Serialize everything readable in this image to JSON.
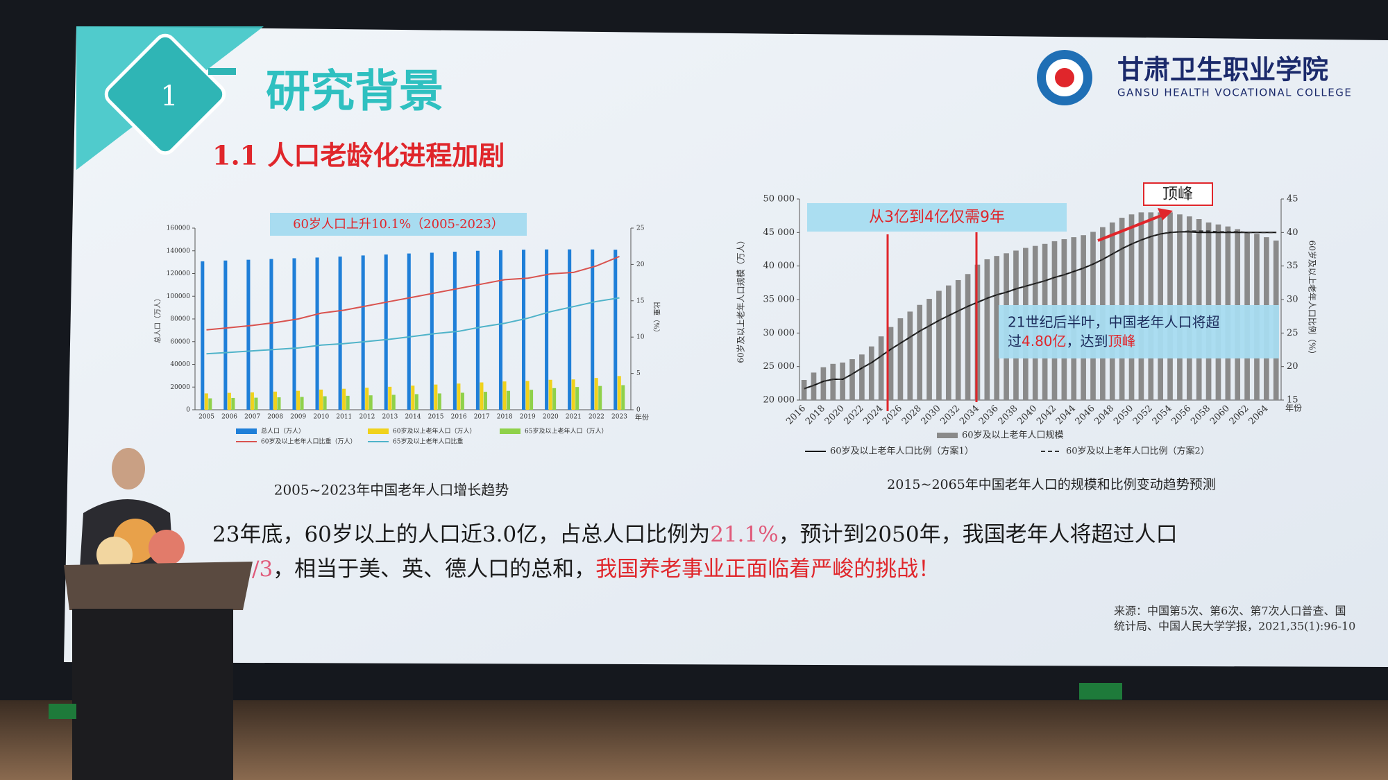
{
  "slide": {
    "section_number": "1",
    "section_title": "研究背景",
    "subtitle": "1.1 人口老龄化进程加剧",
    "college_name": "甘肃卫生职业学院",
    "college_name_en": "GANSU HEALTH VOCATIONAL COLLEGE",
    "body": [
      [
        "23年底，60岁以上的人口近3.0亿，占总人口比例为",
        "21.1%",
        "，预计到2050年，我国老年人将超过人口"
      ],
      [
        "/3",
        "，相当于美、英、德人口的总和，",
        "我国养老事业正面临着严峻的挑战！"
      ]
    ],
    "source": [
      "来源：中国第5次、第6次、第7次人口普查、国",
      "统计局、中国人民大学学报，2021,35(1):96-10"
    ]
  },
  "chart_data": [
    {
      "type": "bar",
      "title": "60岁人口上升10.1%（2005-2023）",
      "caption": "2005~2023年中国老年人口增长趋势",
      "y_label": "总人口（万人）",
      "y2_label": "比重（%）",
      "x_label": "年份",
      "categories": [
        "2005",
        "2006",
        "2007",
        "2008",
        "2009",
        "2010",
        "2011",
        "2012",
        "2013",
        "2014",
        "2015",
        "2016",
        "2017",
        "2018",
        "2019",
        "2020",
        "2021",
        "2022",
        "2023"
      ],
      "series": [
        {
          "name": "总人口（万人）",
          "color": "#1f7fd8",
          "values": [
            130756,
            131448,
            132129,
            132802,
            133450,
            134091,
            134916,
            135922,
            136726,
            137646,
            138326,
            139232,
            140011,
            140541,
            141008,
            141212,
            141260,
            141175,
            140967
          ]
        },
        {
          "name": "60岁及以上老年人口（万人）",
          "color": "#f0d21c",
          "values": [
            14400,
            14900,
            15300,
            15989,
            16714,
            17765,
            18499,
            19390,
            20243,
            21242,
            22200,
            23086,
            24090,
            24949,
            25388,
            26402,
            26736,
            28004,
            29697
          ]
        },
        {
          "name": "65岁及以上老年人口（万人）",
          "color": "#8fd14a",
          "values": [
            10055,
            10419,
            10636,
            10956,
            11307,
            11894,
            12288,
            12714,
            13161,
            13755,
            14386,
            15003,
            15831,
            16658,
            17603,
            19064,
            20056,
            20978,
            21676
          ]
        },
        {
          "name": "60岁及以上老年人口比重（万人）",
          "color": "#d9534f",
          "type": "line",
          "axis": "y2",
          "values": [
            11.0,
            11.3,
            11.6,
            12.0,
            12.5,
            13.3,
            13.7,
            14.3,
            14.9,
            15.5,
            16.1,
            16.7,
            17.3,
            17.9,
            18.1,
            18.7,
            18.9,
            19.8,
            21.1
          ]
        },
        {
          "name": "65岁及以上老年人口比重",
          "color": "#4fb3c9",
          "type": "line",
          "axis": "y2",
          "values": [
            7.7,
            7.9,
            8.1,
            8.3,
            8.5,
            8.9,
            9.1,
            9.4,
            9.7,
            10.1,
            10.5,
            10.8,
            11.4,
            11.9,
            12.6,
            13.5,
            14.2,
            14.9,
            15.4
          ]
        }
      ],
      "ylim": [
        0,
        160000
      ],
      "yticks": [
        0,
        20000,
        40000,
        60000,
        80000,
        100000,
        120000,
        140000,
        160000
      ],
      "y2lim": [
        0,
        25
      ],
      "y2ticks": [
        0,
        5,
        10,
        15,
        20,
        25
      ]
    },
    {
      "type": "bar",
      "caption": "2015~2065年中国老年人口的规模和比例变动趋势预测",
      "annotations": [
        "从3亿到4亿仅需9年",
        "顶峰"
      ],
      "callout": {
        "line1": "21世纪后半叶，中国老年人口将超",
        "line2": [
          "过",
          "4.80亿",
          "，达到",
          "顶峰"
        ]
      },
      "y_label": "60岁及以上老年人口规模（万人）",
      "y2_label": "60岁及以上老年人口比例（%）",
      "x_label": "年份",
      "categories": [
        "2016",
        null,
        "2018",
        null,
        "2020",
        null,
        "2022",
        null,
        "2024",
        null,
        "2026",
        null,
        "2028",
        null,
        "2030",
        null,
        "2032",
        null,
        "2034",
        null,
        "2036",
        null,
        "2038",
        null,
        "2040",
        null,
        "2042",
        null,
        "2044",
        null,
        "2046",
        null,
        "2048",
        null,
        "2050",
        null,
        "2052",
        null,
        "2054",
        null,
        "2056",
        null,
        "2058",
        null,
        "2060",
        null,
        "2062",
        null,
        "2064",
        null
      ],
      "series": [
        {
          "name": "60岁及以上老年人口规模",
          "color": "#8a8a8a",
          "values": [
            23000,
            24100,
            24900,
            25400,
            25600,
            26100,
            26800,
            28000,
            29500,
            30900,
            32200,
            33200,
            34200,
            35100,
            36300,
            37100,
            37900,
            38800,
            40200,
            41000,
            41500,
            41900,
            42300,
            42700,
            43000,
            43300,
            43700,
            44000,
            44300,
            44600,
            45100,
            45800,
            46500,
            47200,
            47700,
            48000,
            48000,
            48000,
            48000,
            47700,
            47400,
            47000,
            46500,
            46200,
            45900,
            45500,
            45100,
            44800,
            44300,
            43800
          ]
        },
        {
          "name": "60岁及以上老年人口比例（方案1）",
          "color": "#111111",
          "type": "line",
          "axis": "y2",
          "values": [
            16.7,
            17.2,
            17.8,
            18.1,
            18.1,
            18.9,
            19.8,
            20.6,
            21.6,
            22.6,
            23.5,
            24.4,
            25.3,
            26.1,
            26.9,
            27.6,
            28.3,
            29.0,
            29.6,
            30.2,
            30.7,
            31.1,
            31.6,
            32.0,
            32.4,
            32.8,
            33.3,
            33.7,
            34.2,
            34.7,
            35.3,
            36.0,
            36.8,
            37.6,
            38.3,
            38.9,
            39.4,
            39.8,
            40.0,
            40.1,
            40.1,
            40.0,
            40.0,
            40.0,
            40.0,
            40.0,
            40.0,
            40.0,
            40.0,
            40.0
          ]
        },
        {
          "name": "60岁及以上老年人口比例（方案2）",
          "color": "#333333",
          "type": "line",
          "axis": "y2",
          "linestyle": "dashed",
          "values": [
            16.7,
            17.2,
            17.8,
            18.1,
            18.1,
            18.9,
            19.8,
            20.6,
            21.6,
            22.6,
            23.5,
            24.4,
            25.3,
            26.1,
            26.9,
            27.6,
            28.3,
            29.0,
            29.6,
            30.2,
            30.7,
            31.1,
            31.6,
            32.0,
            32.4,
            32.8,
            33.3,
            33.7,
            34.2,
            34.7,
            35.3,
            36.0,
            36.8,
            37.6,
            38.3,
            38.9,
            39.4,
            39.8,
            40.0,
            40.1,
            40.2,
            40.2,
            40.2,
            40.1,
            40.1,
            40.1,
            40.0,
            40.0,
            40.0,
            40.0
          ]
        }
      ],
      "ylim": [
        20000,
        50000
      ],
      "yticks": [
        {
          "value": 20000,
          "label": "20 000"
        },
        {
          "value": 25000,
          "label": "25 000"
        },
        {
          "value": 30000,
          "label": "30 000"
        },
        {
          "value": 35000,
          "label": "35 000"
        },
        {
          "value": 40000,
          "label": "40 000"
        },
        {
          "value": 45000,
          "label": "45 000"
        },
        {
          "value": 50000,
          "label": "50 000"
        }
      ],
      "y2lim": [
        15,
        45
      ],
      "y2ticks": [
        15,
        20,
        25,
        30,
        35,
        40,
        45
      ]
    }
  ]
}
